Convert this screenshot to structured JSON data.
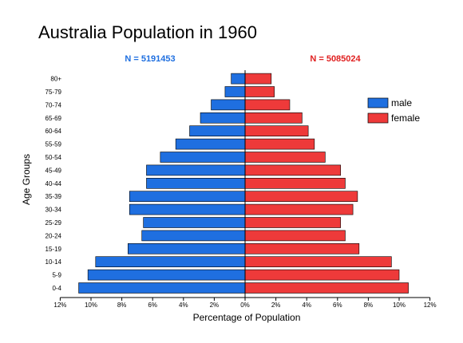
{
  "chart_data": {
    "type": "bar",
    "orientation": "horizontal-population-pyramid",
    "title": "Australia Population in 1960",
    "xlabel": "Percentage of Population",
    "ylabel": "Age Groups",
    "xlim": [
      -12,
      12
    ],
    "x_ticks": [
      -12,
      -10,
      -8,
      -6,
      -4,
      -2,
      0,
      2,
      4,
      6,
      8,
      10,
      12
    ],
    "x_tick_labels": [
      "12%",
      "10%",
      "8%",
      "6%",
      "4%",
      "2%",
      "0%",
      "2%",
      "4%",
      "6%",
      "8%",
      "10%",
      "12%"
    ],
    "categories": [
      "0-4",
      "5-9",
      "10-14",
      "15-19",
      "20-24",
      "25-29",
      "30-34",
      "35-39",
      "40-44",
      "45-49",
      "50-54",
      "55-59",
      "60-64",
      "65-69",
      "70-74",
      "75-79",
      "80+"
    ],
    "series": [
      {
        "name": "male",
        "color": "#1f6fe0",
        "total_label": "N = 5191453",
        "values": [
          10.8,
          10.2,
          9.7,
          7.6,
          6.7,
          6.6,
          7.5,
          7.5,
          6.4,
          6.4,
          5.5,
          4.5,
          3.6,
          2.9,
          2.2,
          1.3,
          0.9
        ]
      },
      {
        "name": "female",
        "color": "#ee3a3a",
        "total_label": "N = 5085024",
        "values": [
          10.6,
          10.0,
          9.5,
          7.4,
          6.5,
          6.2,
          7.0,
          7.3,
          6.5,
          6.2,
          5.2,
          4.5,
          4.1,
          3.7,
          2.9,
          1.9,
          1.7
        ]
      }
    ],
    "legend_position": "right",
    "grid": false
  }
}
